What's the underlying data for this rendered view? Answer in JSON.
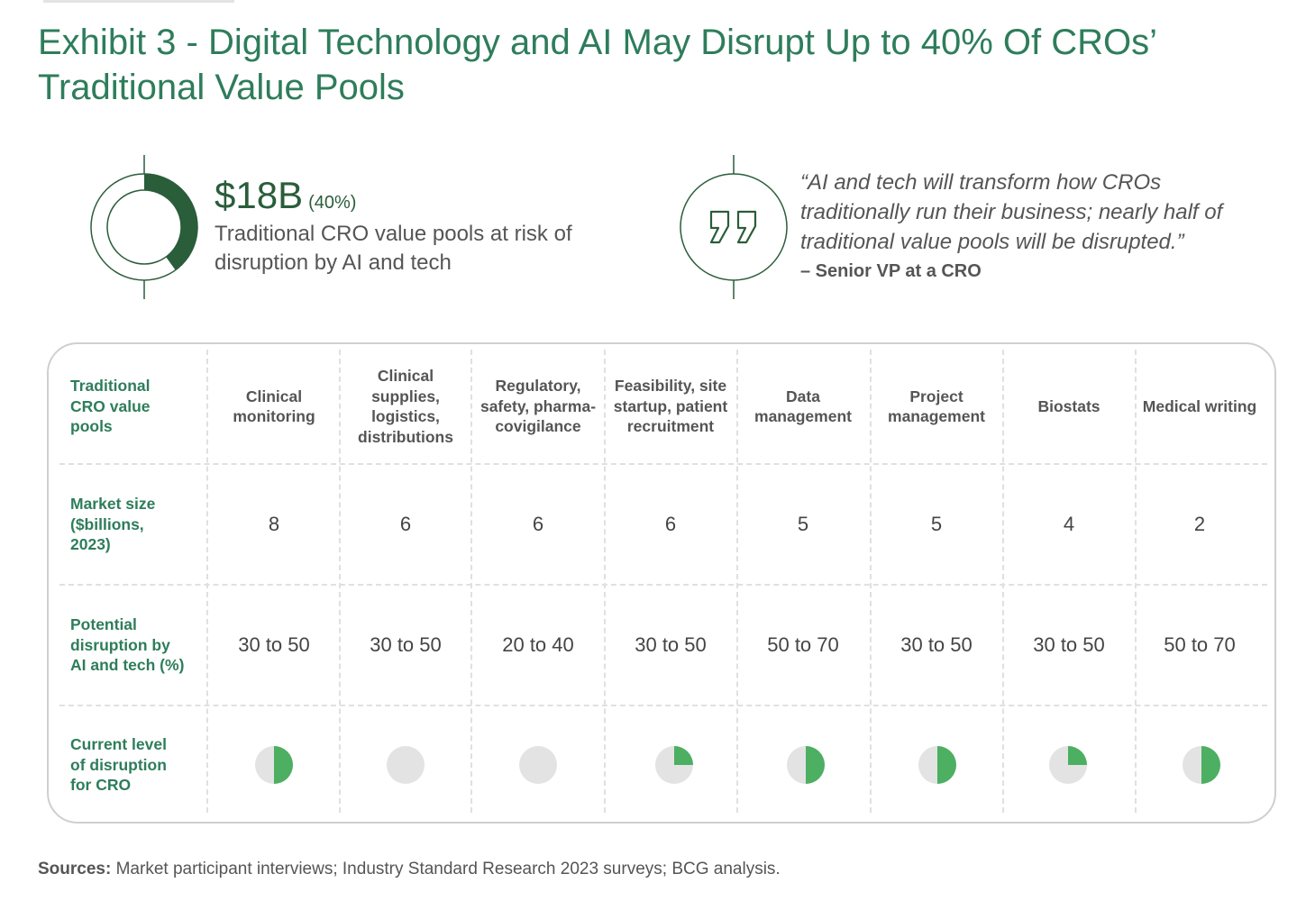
{
  "title": "Exhibit 3 - Digital Technology and AI May Disrupt Up to 40% Of CROs’ Traditional Value Pools",
  "highlight": {
    "value": "$18B",
    "percent_label": "(40%)",
    "share": 0.4,
    "description": "Traditional CRO value pools at risk of disruption by AI and tech"
  },
  "quote": {
    "text": "“AI and tech will transform how CROs traditionally run their business; nearly half of traditional value pools will be disrupted.”",
    "author": "– Senior VP at a CRO"
  },
  "colors": {
    "title": "#2e7d5b",
    "dark_green": "#2a5d3a",
    "pie_fill": "#4caf61",
    "pie_bg": "#e3e3e3"
  },
  "chart_data": {
    "type": "table",
    "row_labels": [
      "Traditional CRO value pools",
      "Market size ($billions, 2023)",
      "Potential disruption by AI and tech (%)",
      "Current level of disruption for CRO"
    ],
    "columns": [
      {
        "name": "Clinical monitoring",
        "market_size": 8,
        "disruption": "30 to 50",
        "current_level": 0.5
      },
      {
        "name": "Clinical supplies, logistics, distributions",
        "market_size": 6,
        "disruption": "30 to 50",
        "current_level": 0
      },
      {
        "name": "Regulatory, safety, pharma-covigilance",
        "market_size": 6,
        "disruption": "20 to 40",
        "current_level": 0
      },
      {
        "name": "Feasibility, site startup, patient recruitment",
        "market_size": 6,
        "disruption": "30 to 50",
        "current_level": 0.25
      },
      {
        "name": "Data management",
        "market_size": 5,
        "disruption": "50 to 70",
        "current_level": 0.5
      },
      {
        "name": "Project management",
        "market_size": 5,
        "disruption": "30 to 50",
        "current_level": 0.5
      },
      {
        "name": "Biostats",
        "market_size": 4,
        "disruption": "30 to 50",
        "current_level": 0.25
      },
      {
        "name": "Medical writing",
        "market_size": 2,
        "disruption": "50 to 70",
        "current_level": 0.5
      }
    ]
  },
  "sources": {
    "label": "Sources:",
    "text": "Market participant interviews; Industry Standard Research 2023 surveys; BCG analysis."
  }
}
